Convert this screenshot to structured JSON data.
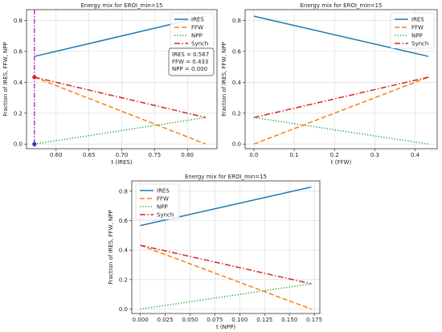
{
  "colors": {
    "IRES": "#1f77b4",
    "FFW": "#ff7f0e",
    "NPP": "#2ca02c",
    "Synch": "#d62728",
    "cursor": "#b000c8",
    "marker_top": "#d62728",
    "marker_bottom": "#1f3fbf"
  },
  "chart_data": [
    {
      "type": "line",
      "title": "Energy mix for EROI_min=15",
      "xlabel": "t (IRES)",
      "ylabel": "Fraction of IRES, FFW, NPP",
      "xlim": [
        0.555,
        0.845
      ],
      "ylim": [
        -0.03,
        0.87
      ],
      "xticks": [
        "0.60",
        "0.65",
        "0.70",
        "0.75",
        "0.80"
      ],
      "xtick_values": [
        0.6,
        0.65,
        0.7,
        0.75,
        0.8
      ],
      "yticks": [
        "0.0",
        "0.2",
        "0.4",
        "0.6",
        "0.8"
      ],
      "ytick_values": [
        0,
        0.2,
        0.4,
        0.6,
        0.8
      ],
      "legend_position": "top-right",
      "grid": true,
      "series": [
        {
          "name": "IRES",
          "x": [
            0.567,
            0.828
          ],
          "y": [
            0.567,
            0.828
          ]
        },
        {
          "name": "FFW",
          "x": [
            0.567,
            0.828
          ],
          "y": [
            0.433,
            0.0
          ]
        },
        {
          "name": "NPP",
          "x": [
            0.567,
            0.828
          ],
          "y": [
            0.0,
            0.172
          ]
        },
        {
          "name": "Synch",
          "x": [
            0.567,
            0.828
          ],
          "y": [
            0.433,
            0.172
          ]
        }
      ],
      "cursor_x": 0.567,
      "markers": [
        {
          "x": 0.567,
          "y": 0.433
        },
        {
          "x": 0.567,
          "y": 0.0
        }
      ],
      "annotation": [
        "IRES = 0.567",
        "FFW = 0.433",
        "NPP = 0.000"
      ]
    },
    {
      "type": "line",
      "title": "Energy mix for EROI_min=15",
      "xlabel": "t (FFW)",
      "ylabel": "Fraction of IRES, FFW, NPP",
      "xlim": [
        -0.0217,
        0.4547
      ],
      "ylim": [
        -0.03,
        0.87
      ],
      "xticks": [
        "0.0",
        "0.1",
        "0.2",
        "0.3",
        "0.4"
      ],
      "xtick_values": [
        0,
        0.1,
        0.2,
        0.3,
        0.4
      ],
      "yticks": [
        "0.0",
        "0.2",
        "0.4",
        "0.6",
        "0.8"
      ],
      "ytick_values": [
        0,
        0.2,
        0.4,
        0.6,
        0.8
      ],
      "legend_position": "top-right",
      "grid": true,
      "series": [
        {
          "name": "IRES",
          "x": [
            0,
            0.433
          ],
          "y": [
            0.828,
            0.567
          ]
        },
        {
          "name": "FFW",
          "x": [
            0,
            0.433
          ],
          "y": [
            0.0,
            0.433
          ]
        },
        {
          "name": "NPP",
          "x": [
            0,
            0.433
          ],
          "y": [
            0.172,
            0.0
          ]
        },
        {
          "name": "Synch",
          "x": [
            0,
            0.433
          ],
          "y": [
            0.172,
            0.433
          ]
        }
      ]
    },
    {
      "type": "line",
      "title": "Energy mix for EROI_min=15",
      "xlabel": "t (NPP)",
      "ylabel": "Fraction of IRES, FFW, NPP",
      "xlim": [
        -0.0086,
        0.1806
      ],
      "ylim": [
        -0.03,
        0.87
      ],
      "xticks": [
        "0.000",
        "0.025",
        "0.050",
        "0.075",
        "0.100",
        "0.125",
        "0.150",
        "0.175"
      ],
      "xtick_values": [
        0,
        0.025,
        0.05,
        0.075,
        0.1,
        0.125,
        0.15,
        0.175
      ],
      "yticks": [
        "0.0",
        "0.2",
        "0.4",
        "0.6",
        "0.8"
      ],
      "ytick_values": [
        0,
        0.2,
        0.4,
        0.6,
        0.8
      ],
      "legend_position": "top-left",
      "grid": true,
      "series": [
        {
          "name": "IRES",
          "x": [
            0,
            0.172
          ],
          "y": [
            0.567,
            0.828
          ]
        },
        {
          "name": "FFW",
          "x": [
            0,
            0.172
          ],
          "y": [
            0.433,
            0.0
          ]
        },
        {
          "name": "NPP",
          "x": [
            0,
            0.172
          ],
          "y": [
            0.0,
            0.172
          ]
        },
        {
          "name": "Synch",
          "x": [
            0,
            0.172
          ],
          "y": [
            0.433,
            0.172
          ]
        }
      ]
    }
  ]
}
